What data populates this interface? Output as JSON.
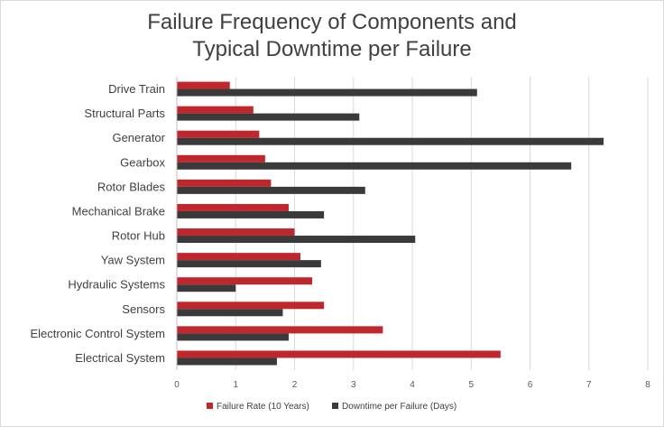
{
  "chart_data": {
    "type": "bar",
    "orientation": "horizontal",
    "title": "Failure Frequency of Components and Typical Downtime per Failure",
    "title_lines": [
      "Failure Frequency of Components and",
      "Typical Downtime per Failure"
    ],
    "categories": [
      "Drive Train",
      "Structural Parts",
      "Generator",
      "Gearbox",
      "Rotor Blades",
      "Mechanical Brake",
      "Rotor Hub",
      "Yaw System",
      "Hydraulic Systems",
      "Sensors",
      "Electronic Control System",
      "Electrical System"
    ],
    "series": [
      {
        "name": "Failure Rate (10 Years)",
        "color": "#c0272d",
        "values": [
          0.9,
          1.3,
          1.4,
          1.5,
          1.6,
          1.9,
          2.0,
          2.1,
          2.3,
          2.5,
          3.5,
          5.5
        ]
      },
      {
        "name": "Downtime per Failure (Days)",
        "color": "#3a3a3a",
        "values": [
          5.1,
          3.1,
          7.25,
          6.7,
          3.2,
          2.5,
          4.05,
          2.45,
          1.0,
          1.8,
          1.9,
          1.7
        ]
      }
    ],
    "xlim": [
      0,
      8
    ],
    "xticks": [
      0,
      1,
      2,
      3,
      4,
      5,
      6,
      7,
      8
    ],
    "xlabel": "",
    "ylabel": "",
    "grid": "vertical",
    "legend_position": "bottom"
  }
}
